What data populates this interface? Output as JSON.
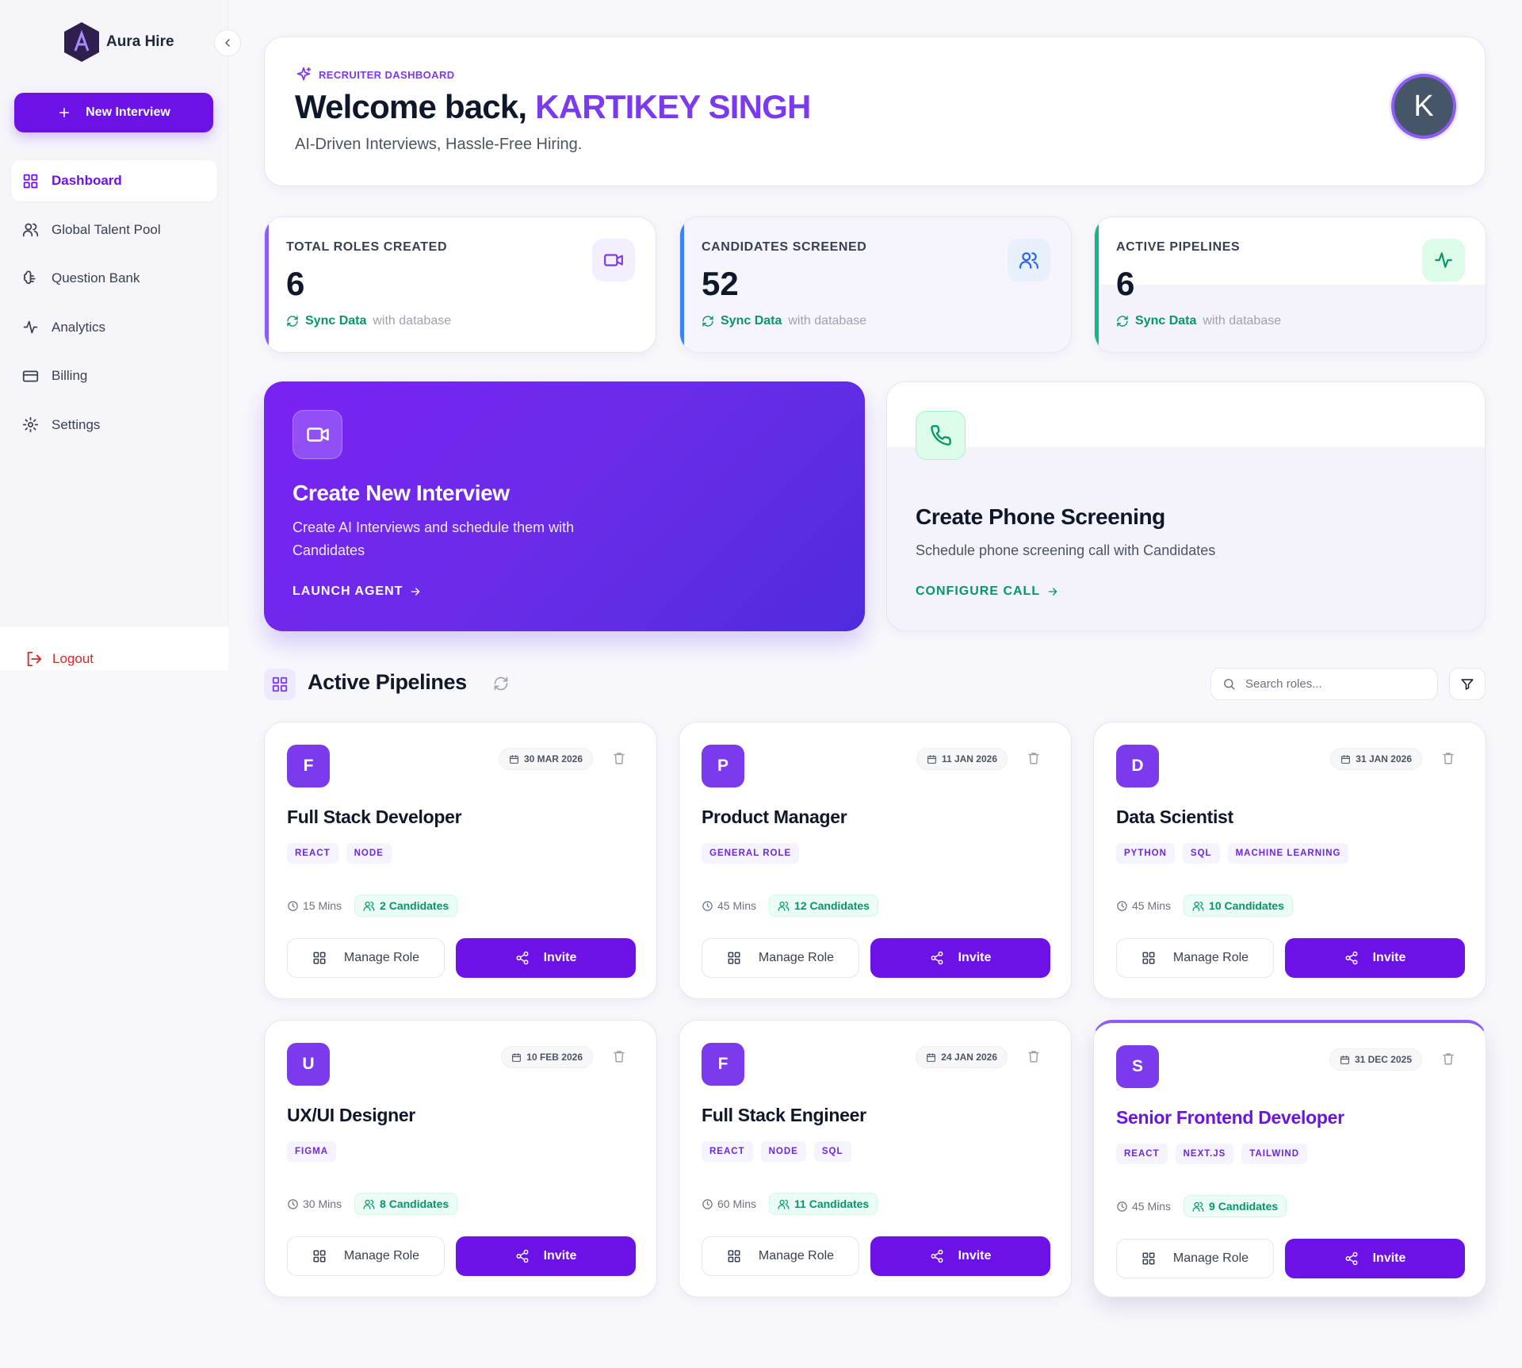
{
  "sidebar": {
    "brand": "Aura Hire",
    "new_interview": "New Interview",
    "nav": [
      "Dashboard",
      "Global Talent Pool",
      "Question Bank",
      "Analytics",
      "Billing",
      "Settings"
    ],
    "logout": "Logout"
  },
  "header": {
    "eyebrow": "RECRUITER DASHBOARD",
    "greeting": "Welcome back,",
    "name": "KARTIKEY SINGH",
    "subtitle": "AI-Driven Interviews, Hassle-Free Hiring.",
    "avatar": "K"
  },
  "stats": [
    {
      "label": "TOTAL ROLES CREATED",
      "value": "6",
      "sync": "Sync Data",
      "sync_note": "with database"
    },
    {
      "label": "CANDIDATES SCREENED",
      "value": "52",
      "sync": "Sync Data",
      "sync_note": "with database"
    },
    {
      "label": "ACTIVE PIPELINES",
      "value": "6",
      "sync": "Sync Data",
      "sync_note": "with database"
    }
  ],
  "actions": [
    {
      "title": "Create New Interview",
      "description": "Create AI Interviews and schedule them with Candidates",
      "cta": "LAUNCH AGENT"
    },
    {
      "title": "Create Phone Screening",
      "description": "Schedule phone screening call with Candidates",
      "cta": "CONFIGURE CALL"
    }
  ],
  "pipelines": {
    "title": "Active Pipelines",
    "search_placeholder": "Search roles...",
    "roles": [
      {
        "initial": "F",
        "date": "30 MAR 2026",
        "title": "Full Stack Developer",
        "tags": [
          "REACT",
          "NODE"
        ],
        "duration": "15 Mins",
        "candidates": "2 Candidates",
        "manage": "Manage Role",
        "invite": "Invite"
      },
      {
        "initial": "P",
        "date": "11 JAN 2026",
        "title": "Product Manager",
        "tags": [
          "GENERAL ROLE"
        ],
        "duration": "45 Mins",
        "candidates": "12 Candidates",
        "manage": "Manage Role",
        "invite": "Invite"
      },
      {
        "initial": "D",
        "date": "31 JAN 2026",
        "title": "Data Scientist",
        "tags": [
          "PYTHON",
          "SQL",
          "MACHINE LEARNING"
        ],
        "duration": "45 Mins",
        "candidates": "10 Candidates",
        "manage": "Manage Role",
        "invite": "Invite"
      },
      {
        "initial": "U",
        "date": "10 FEB 2026",
        "title": "UX/UI Designer",
        "tags": [
          "FIGMA"
        ],
        "duration": "30 Mins",
        "candidates": "8 Candidates",
        "manage": "Manage Role",
        "invite": "Invite"
      },
      {
        "initial": "F",
        "date": "24 JAN 2026",
        "title": "Full Stack Engineer",
        "tags": [
          "REACT",
          "NODE",
          "SQL"
        ],
        "duration": "60 Mins",
        "candidates": "11 Candidates",
        "manage": "Manage Role",
        "invite": "Invite"
      },
      {
        "initial": "S",
        "date": "31 DEC 2025",
        "title": "Senior Frontend Developer",
        "tags": [
          "REACT",
          "NEXT.JS",
          "TAILWIND"
        ],
        "duration": "45 Mins",
        "candidates": "9 Candidates",
        "manage": "Manage Role",
        "invite": "Invite"
      }
    ]
  }
}
